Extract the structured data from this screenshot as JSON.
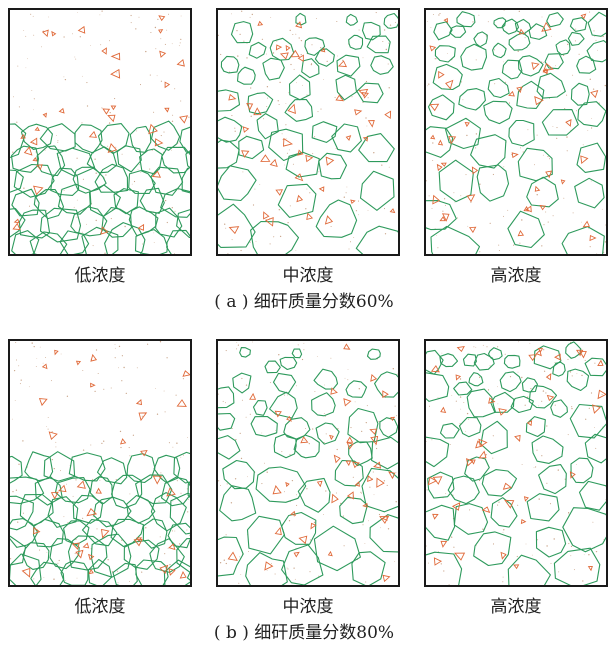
{
  "figures": [
    {
      "caption_prefix": "( a ) ",
      "caption_text": "细矸质量分数60%",
      "panels": [
        {
          "label": "低浓度",
          "mode": "settled"
        },
        {
          "label": "中浓度",
          "mode": "medium"
        },
        {
          "label": "高浓度",
          "mode": "high"
        }
      ]
    },
    {
      "caption_prefix": "( b ) ",
      "caption_text": "细矸质量分数80%",
      "panels": [
        {
          "label": "低浓度",
          "mode": "settled"
        },
        {
          "label": "中浓度",
          "mode": "medium"
        },
        {
          "label": "高浓度",
          "mode": "high"
        }
      ]
    }
  ],
  "colors": {
    "coarse_particle": "#2e9a5c",
    "fine_particle": "#e06a3a",
    "dust": "#c9a58a",
    "frame": "#1a1a1a"
  }
}
